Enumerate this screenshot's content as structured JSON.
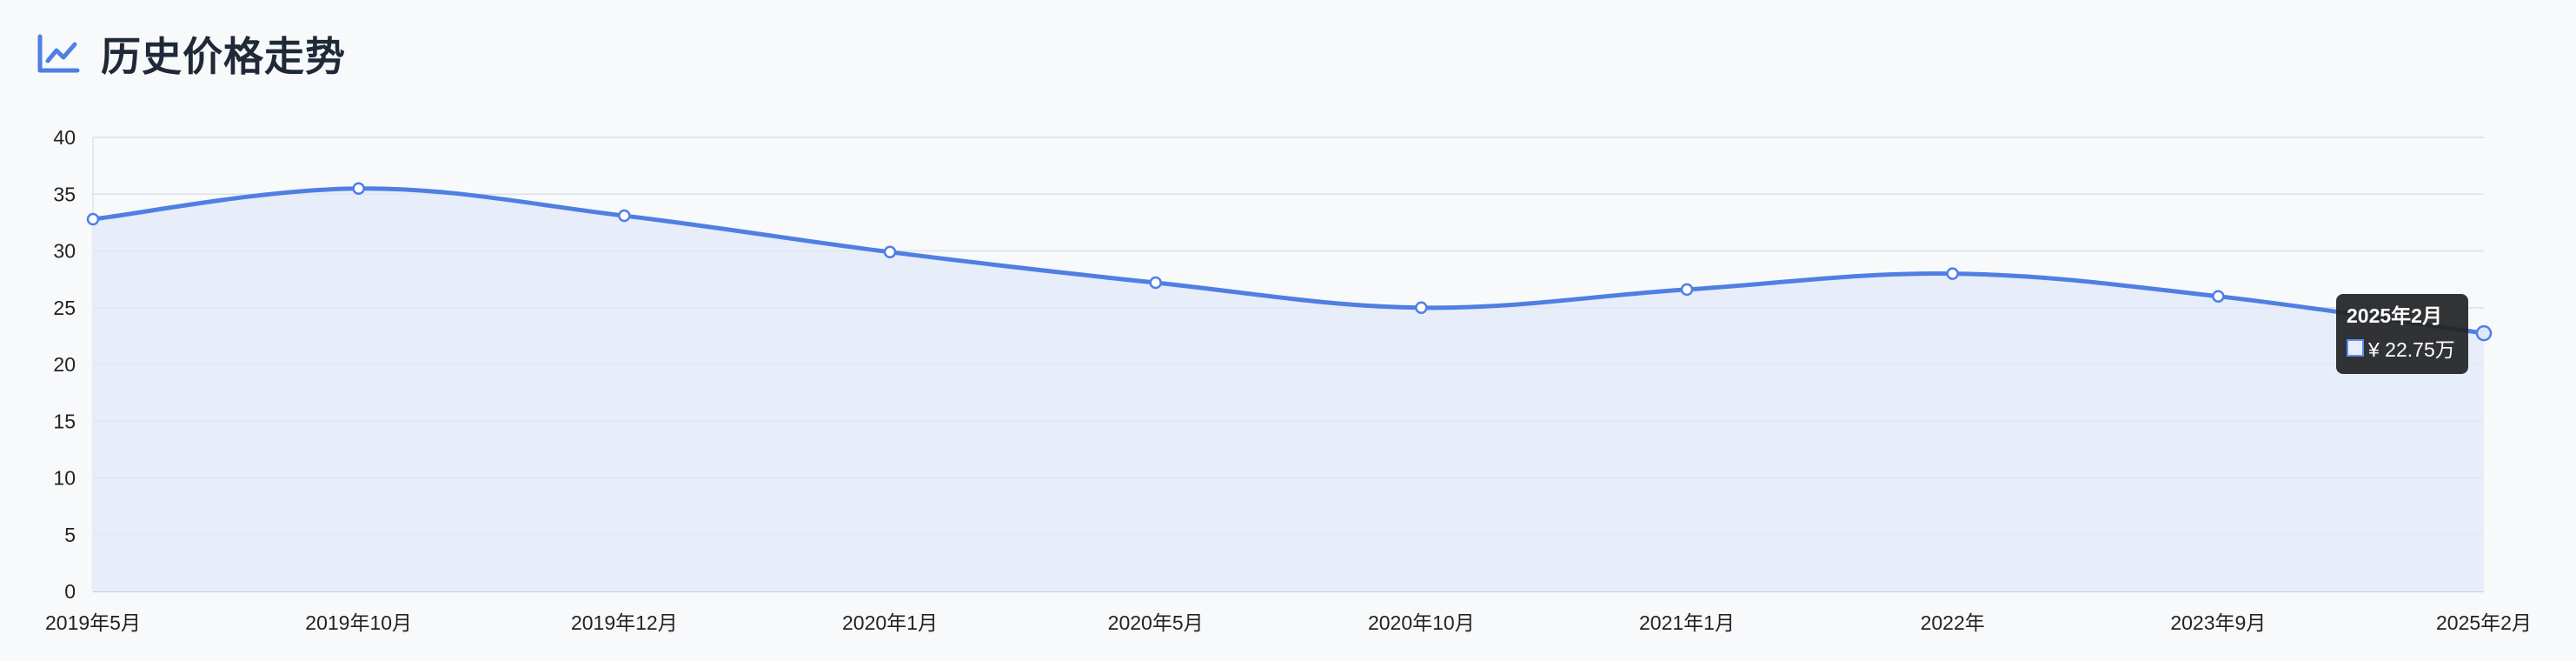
{
  "header": {
    "title": "历史价格走势",
    "icon": "line-chart-icon"
  },
  "colors": {
    "line": "#4f7fe3",
    "area": "#e7edf9",
    "grid": "#dde1e7",
    "title": "#1f2937",
    "icon": "#4f7fe3",
    "tooltip_bg": "#222426"
  },
  "chart_data": {
    "type": "area",
    "title": "历史价格走势",
    "categories": [
      "2019年5月",
      "2019年10月",
      "2019年12月",
      "2020年1月",
      "2020年5月",
      "2020年10月",
      "2021年1月",
      "2022年",
      "2023年9月",
      "2025年2月"
    ],
    "series": [
      {
        "values": [
          32.8,
          35.5,
          33.1,
          29.9,
          27.2,
          25.0,
          26.6,
          28.0,
          26.0,
          22.75
        ]
      }
    ],
    "ylim": [
      0,
      40
    ],
    "yticks": [
      0,
      5,
      10,
      15,
      20,
      25,
      30,
      35,
      40
    ],
    "grid": true,
    "smooth": true,
    "legend": "none"
  },
  "tooltip": {
    "title": "2025年2月",
    "value": "¥ 22.75万"
  }
}
